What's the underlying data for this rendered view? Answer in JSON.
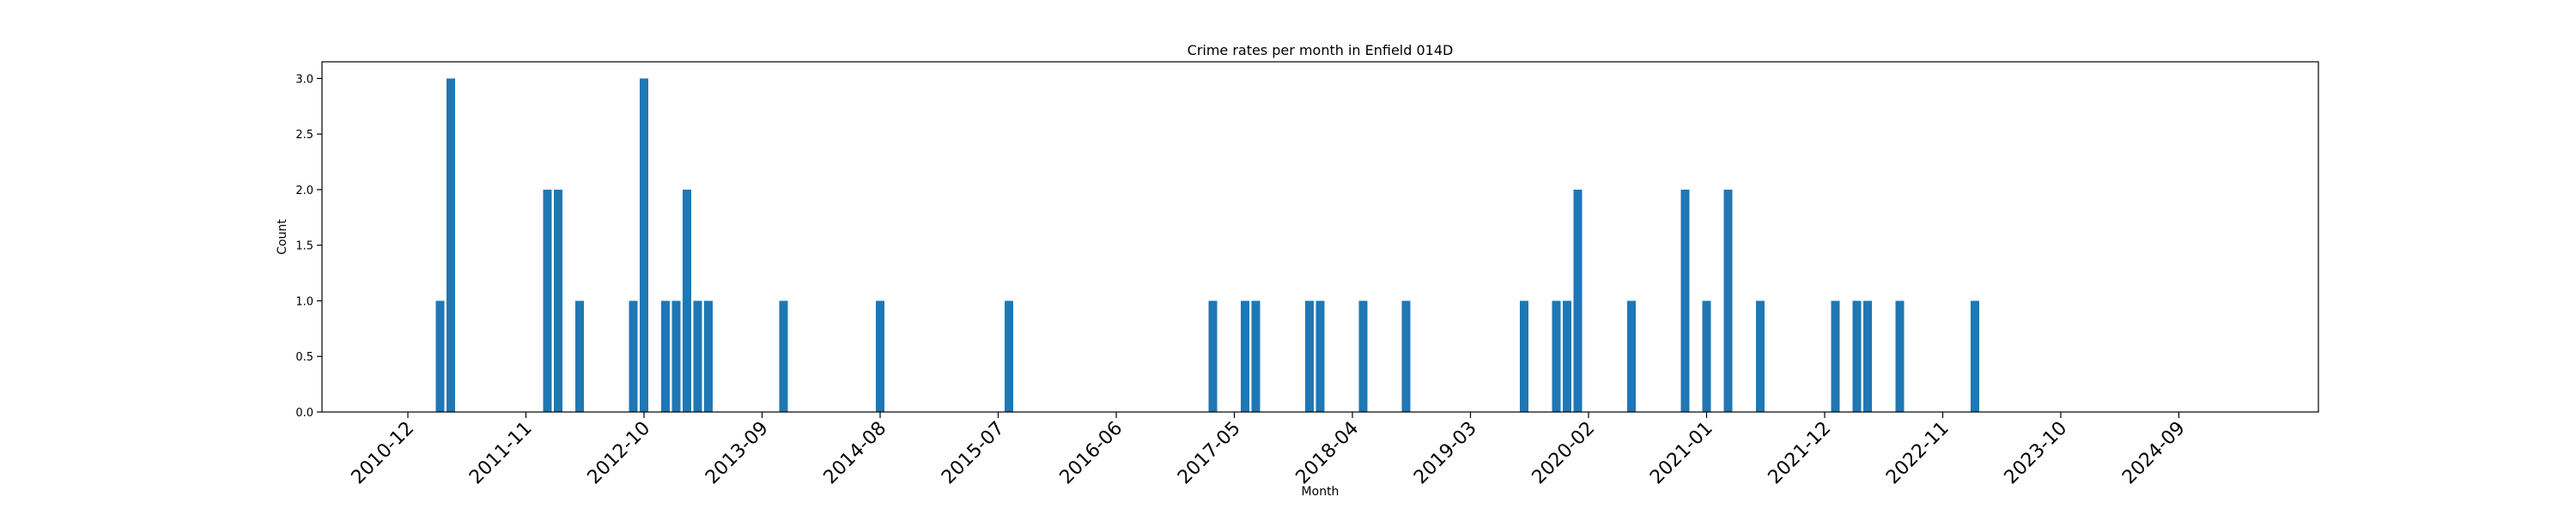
{
  "chart_data": {
    "type": "bar",
    "title": "Crime rates per month in Enfield 014D",
    "xlabel": "Month",
    "ylabel": "Count",
    "ylim": [
      0,
      3.15
    ],
    "yticks": [
      0.0,
      0.5,
      1.0,
      1.5,
      2.0,
      2.5,
      3.0
    ],
    "ytick_labels": [
      "0.0",
      "0.5",
      "1.0",
      "1.5",
      "2.0",
      "2.5",
      "3.0"
    ],
    "xlim": [
      "2010-04",
      "2025-10"
    ],
    "xticks": [
      "2010-12",
      "2011-11",
      "2012-10",
      "2013-09",
      "2014-08",
      "2015-07",
      "2016-06",
      "2017-05",
      "2018-04",
      "2019-03",
      "2020-02",
      "2021-01",
      "2021-12",
      "2022-11",
      "2023-10",
      "2024-09"
    ],
    "bar_color": "#1f77b4",
    "categories": [
      "2011-03",
      "2011-04",
      "2012-01",
      "2012-02",
      "2012-04",
      "2012-09",
      "2012-10",
      "2012-12",
      "2013-01",
      "2013-02",
      "2013-03",
      "2013-04",
      "2013-11",
      "2014-08",
      "2015-08",
      "2017-03",
      "2017-06",
      "2017-07",
      "2017-12",
      "2018-01",
      "2018-05",
      "2018-09",
      "2019-08",
      "2019-11",
      "2019-12",
      "2020-01",
      "2020-06",
      "2020-11",
      "2021-01",
      "2021-03",
      "2021-06",
      "2022-01",
      "2022-03",
      "2022-04",
      "2022-07",
      "2023-02"
    ],
    "values": [
      1,
      3,
      2,
      2,
      1,
      1,
      3,
      1,
      1,
      2,
      1,
      1,
      1,
      1,
      1,
      1,
      1,
      1,
      1,
      1,
      1,
      1,
      1,
      1,
      1,
      2,
      1,
      2,
      1,
      2,
      1,
      1,
      1,
      1,
      1,
      1
    ]
  }
}
